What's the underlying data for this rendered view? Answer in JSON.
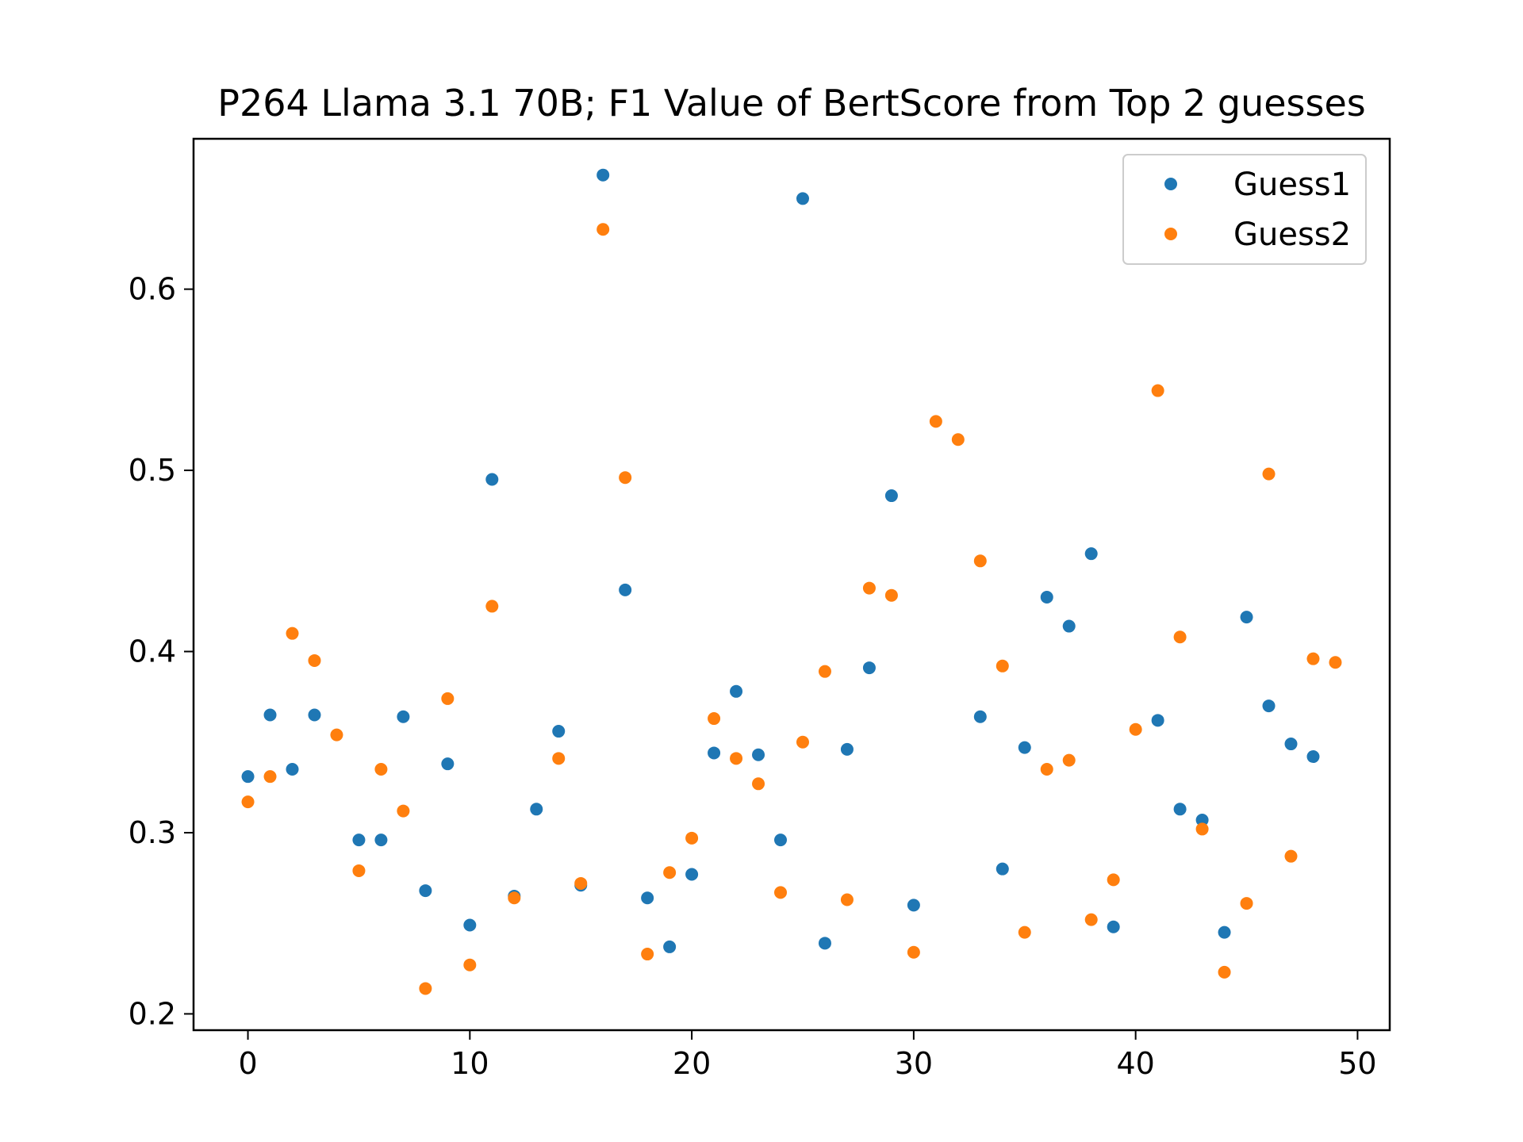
{
  "chart_data": {
    "type": "scatter",
    "title": "P264 Llama 3.1 70B; F1 Value of BertScore from Top 2 guesses",
    "xlabel": "",
    "ylabel": "",
    "xlim": [
      -2.45,
      51.45
    ],
    "ylim": [
      0.191,
      0.683
    ],
    "xticks": [
      0,
      10,
      20,
      30,
      40,
      50
    ],
    "yticks": [
      0.2,
      0.3,
      0.4,
      0.5,
      0.6
    ],
    "grid": false,
    "legend_position": "top-right",
    "series": [
      {
        "name": "Guess1",
        "color": "#1f77b4",
        "x": [
          0,
          1,
          2,
          3,
          5,
          6,
          7,
          8,
          9,
          10,
          11,
          12,
          13,
          14,
          15,
          16,
          17,
          18,
          19,
          20,
          21,
          22,
          23,
          24,
          25,
          26,
          27,
          28,
          29,
          30,
          33,
          34,
          35,
          36,
          37,
          38,
          39,
          41,
          42,
          43,
          44,
          45,
          46,
          47,
          48
        ],
        "y": [
          0.331,
          0.365,
          0.335,
          0.365,
          0.296,
          0.296,
          0.364,
          0.268,
          0.338,
          0.249,
          0.495,
          0.265,
          0.313,
          0.356,
          0.271,
          0.663,
          0.434,
          0.264,
          0.237,
          0.277,
          0.344,
          0.378,
          0.343,
          0.296,
          0.65,
          0.239,
          0.346,
          0.391,
          0.486,
          0.26,
          0.364,
          0.28,
          0.347,
          0.43,
          0.414,
          0.454,
          0.248,
          0.362,
          0.313,
          0.307,
          0.245,
          0.419,
          0.37,
          0.349,
          0.342
        ]
      },
      {
        "name": "Guess2",
        "color": "#ff7f0e",
        "x": [
          0,
          1,
          2,
          3,
          4,
          5,
          6,
          7,
          8,
          9,
          10,
          11,
          12,
          14,
          15,
          16,
          17,
          18,
          19,
          20,
          21,
          22,
          23,
          24,
          25,
          26,
          27,
          28,
          29,
          30,
          31,
          32,
          33,
          34,
          35,
          36,
          37,
          38,
          39,
          40,
          41,
          42,
          43,
          44,
          45,
          46,
          47,
          48,
          49
        ],
        "y": [
          0.317,
          0.331,
          0.41,
          0.395,
          0.354,
          0.279,
          0.335,
          0.312,
          0.214,
          0.374,
          0.227,
          0.425,
          0.264,
          0.341,
          0.272,
          0.633,
          0.496,
          0.233,
          0.278,
          0.297,
          0.363,
          0.341,
          0.327,
          0.267,
          0.35,
          0.389,
          0.263,
          0.435,
          0.431,
          0.234,
          0.527,
          0.517,
          0.45,
          0.392,
          0.245,
          0.335,
          0.34,
          0.252,
          0.274,
          0.357,
          0.544,
          0.408,
          0.302,
          0.223,
          0.261,
          0.498,
          0.287,
          0.396,
          0.394
        ]
      }
    ]
  }
}
